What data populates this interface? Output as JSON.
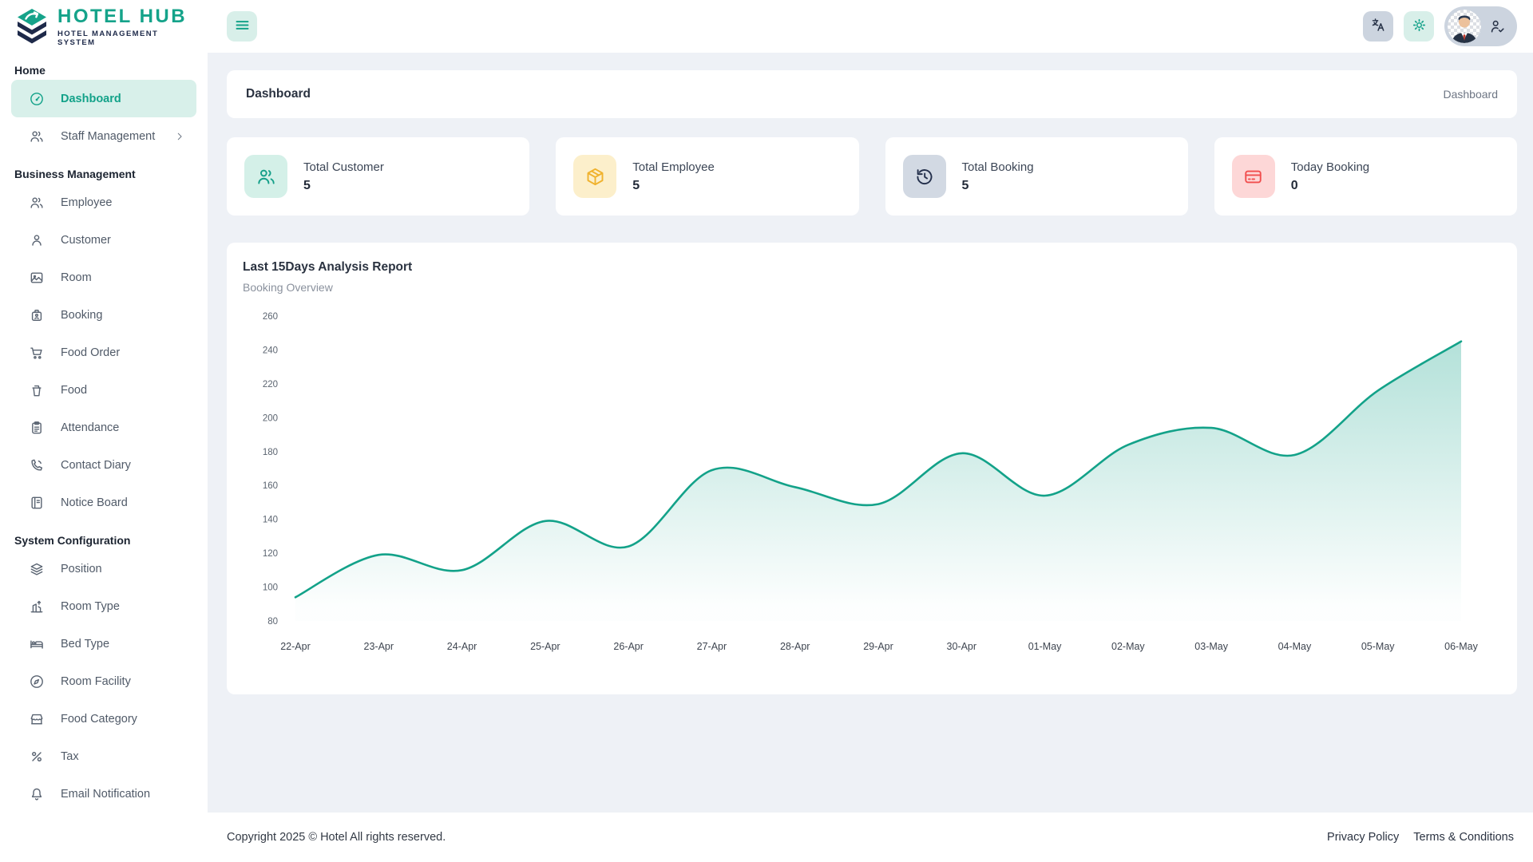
{
  "brand": {
    "name": "HOTEL HUB",
    "tagline": "HOTEL MANAGEMENT SYSTEM"
  },
  "page": {
    "title": "Dashboard",
    "breadcrumb": "Dashboard"
  },
  "sidebar": {
    "sections": [
      {
        "header": "Home",
        "items": [
          {
            "label": "Dashboard",
            "icon": "dashboard-icon",
            "active": true
          },
          {
            "label": "Staff Management",
            "icon": "users-icon",
            "chevron": true
          }
        ]
      },
      {
        "header": "Business Management",
        "items": [
          {
            "label": "Employee",
            "icon": "users-icon"
          },
          {
            "label": "Customer",
            "icon": "user-icon"
          },
          {
            "label": "Room",
            "icon": "image-icon"
          },
          {
            "label": "Booking",
            "icon": "luggage-icon"
          },
          {
            "label": "Food Order",
            "icon": "cart-icon"
          },
          {
            "label": "Food",
            "icon": "cup-icon"
          },
          {
            "label": "Attendance",
            "icon": "clipboard-icon"
          },
          {
            "label": "Contact Diary",
            "icon": "phone-icon"
          },
          {
            "label": "Notice Board",
            "icon": "notebook-icon"
          }
        ]
      },
      {
        "header": "System Configuration",
        "items": [
          {
            "label": "Position",
            "icon": "layers-icon"
          },
          {
            "label": "Room Type",
            "icon": "building-icon"
          },
          {
            "label": "Bed Type",
            "icon": "bed-icon"
          },
          {
            "label": "Room Facility",
            "icon": "compass-icon"
          },
          {
            "label": "Food Category",
            "icon": "store-icon"
          },
          {
            "label": "Tax",
            "icon": "percent-icon"
          },
          {
            "label": "Email Notification",
            "icon": "bell-icon"
          }
        ]
      }
    ]
  },
  "stats": [
    {
      "title": "Total Customer",
      "value": "5",
      "icon": "users-icon",
      "bg": "#d4f0e8",
      "accent": "#16a08a"
    },
    {
      "title": "Total Employee",
      "value": "5",
      "icon": "package-icon",
      "bg": "#fcefcb",
      "accent": "#f0b22e"
    },
    {
      "title": "Total Booking",
      "value": "5",
      "icon": "history-icon",
      "bg": "#d2d9e3",
      "accent": "#24304c"
    },
    {
      "title": "Today Booking",
      "value": "0",
      "icon": "credit-card-icon",
      "bg": "#fdd7d7",
      "accent": "#f14d4d"
    }
  ],
  "chart_data": {
    "type": "area",
    "title": "Last 15Days Analysis Report",
    "subtitle": "Booking Overview",
    "categories": [
      "22-Apr",
      "23-Apr",
      "24-Apr",
      "25-Apr",
      "26-Apr",
      "27-Apr",
      "28-Apr",
      "29-Apr",
      "30-Apr",
      "01-May",
      "02-May",
      "03-May",
      "04-May",
      "05-May",
      "06-May"
    ],
    "values": [
      94,
      119,
      110,
      139,
      124,
      169,
      159,
      149,
      179,
      154,
      184,
      194,
      178,
      216,
      245
    ],
    "ylim": [
      80,
      260
    ],
    "yticks": [
      80,
      100,
      120,
      140,
      160,
      180,
      200,
      220,
      240,
      260
    ],
    "line_color": "#13a289",
    "grid": false,
    "legend": "none"
  },
  "footer": {
    "copyright": "Copyright 2025 © Hotel All rights reserved.",
    "links": [
      "Privacy Policy",
      "Terms & Conditions"
    ]
  },
  "colors": {
    "brand_teal": "#13a289",
    "brand_navy": "#1e2a4a",
    "content_bg": "#eef1f6",
    "active_bg": "#d8f0ea"
  }
}
